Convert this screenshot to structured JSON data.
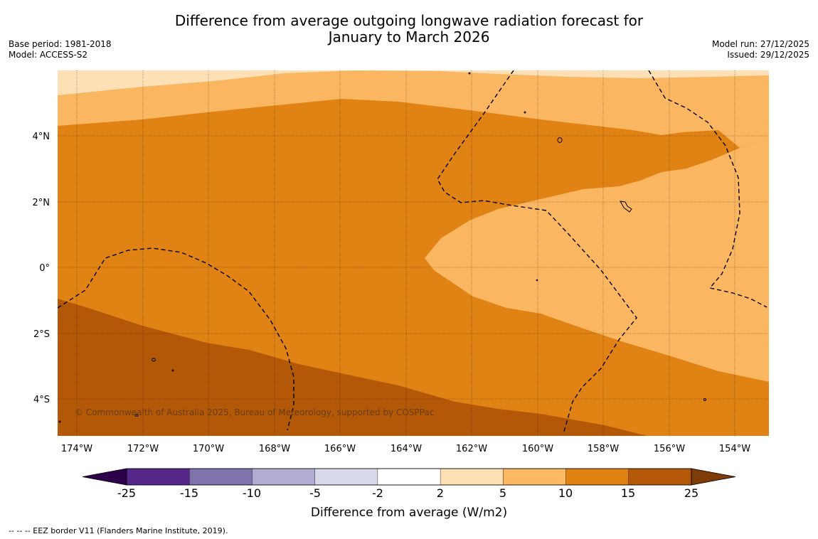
{
  "title": {
    "line1": "Difference from average outgoing longwave radiation forecast for",
    "line2": "January to March 2026"
  },
  "meta_left": {
    "base_period": "Base period: 1981-2018",
    "model": "Model: ACCESS-S2"
  },
  "meta_right": {
    "model_run": "Model run: 27/12/2025",
    "issued": "Issued: 29/12/2025"
  },
  "map": {
    "lat_labels": [
      "4°N",
      "2°N",
      "0°",
      "2°S",
      "4°S"
    ],
    "lon_labels": [
      "174°W",
      "172°W",
      "170°W",
      "168°W",
      "166°W",
      "164°W",
      "162°W",
      "160°W",
      "158°W",
      "156°W",
      "154°W"
    ],
    "copyright": "© Commonwealth of Australia 2025, Bureau of Meteorology, supported by COSPPac",
    "colors": {
      "c2_5": "#fde0b6",
      "c5_10": "#fbb661",
      "c10_15": "#e08214",
      "c15_25": "#b35806"
    }
  },
  "colorbar": {
    "ticks": [
      "-25",
      "-15",
      "-10",
      "-5",
      "-2",
      "2",
      "5",
      "10",
      "15",
      "25"
    ],
    "colors": [
      "#2d004b",
      "#542788",
      "#8073ac",
      "#b2abd2",
      "#d8daeb",
      "#ffffff",
      "#fee0b6",
      "#fdb863",
      "#e08214",
      "#b35806",
      "#7f3b08"
    ],
    "title": "Difference from average (W/m2)"
  },
  "footnote": "--  --  -- EEZ border V11 (Flanders Marine Institute, 2019)."
}
